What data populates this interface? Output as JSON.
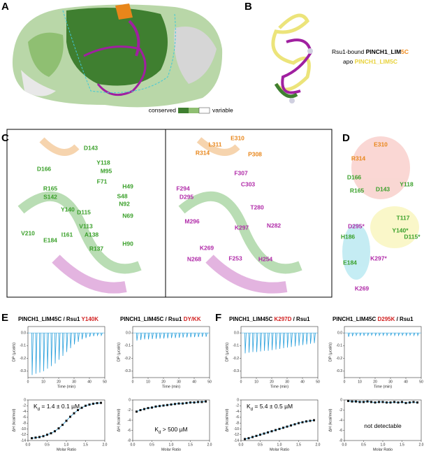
{
  "panel_labels": [
    "A",
    "B",
    "C",
    "D",
    "E",
    "F"
  ],
  "panel_a": {
    "legend_low": "conserved",
    "legend_high": "variable"
  },
  "panel_b": {
    "line1": [
      {
        "text": "Rsu1-bound ",
        "color": "#000000",
        "bold": false
      },
      {
        "text": "PINCH1_LIM",
        "color": "#000000",
        "bold": true
      },
      {
        "text": "5C",
        "color": "#f08c1e",
        "bold": true
      }
    ],
    "line2": [
      {
        "text": "apo ",
        "color": "#000000",
        "bold": false
      },
      {
        "text": "PINCH1_LIM5C",
        "color": "#e8d23c",
        "bold": true
      }
    ]
  },
  "residue_colors": {
    "green": "#3aa02a",
    "orange": "#e8861a",
    "magenta": "#b02aa8"
  },
  "panel_c": {
    "left": [
      {
        "text": "D143",
        "group": "green"
      },
      {
        "text": "Y118",
        "group": "green"
      },
      {
        "text": "D166",
        "group": "green"
      },
      {
        "text": "M95",
        "group": "green"
      },
      {
        "text": "F71",
        "group": "green"
      },
      {
        "text": "H49",
        "group": "green"
      },
      {
        "text": "R165",
        "group": "green"
      },
      {
        "text": "S48",
        "group": "green"
      },
      {
        "text": "S142",
        "group": "green"
      },
      {
        "text": "N92",
        "group": "green"
      },
      {
        "text": "D115",
        "group": "green"
      },
      {
        "text": "Y140",
        "group": "green"
      },
      {
        "text": "N69",
        "group": "green"
      },
      {
        "text": "V113",
        "group": "green"
      },
      {
        "text": "I161",
        "group": "green"
      },
      {
        "text": "A138",
        "group": "green"
      },
      {
        "text": "V210",
        "group": "green"
      },
      {
        "text": "E184",
        "group": "green"
      },
      {
        "text": "H90",
        "group": "green"
      },
      {
        "text": "R137",
        "group": "green"
      }
    ],
    "right": [
      {
        "text": "E310",
        "group": "orange"
      },
      {
        "text": "L311",
        "group": "orange"
      },
      {
        "text": "R314",
        "group": "orange"
      },
      {
        "text": "P308",
        "group": "orange"
      },
      {
        "text": "F307",
        "group": "magenta"
      },
      {
        "text": "C303",
        "group": "magenta"
      },
      {
        "text": "F294",
        "group": "magenta"
      },
      {
        "text": "D295",
        "group": "magenta"
      },
      {
        "text": "M296",
        "group": "magenta"
      },
      {
        "text": "T280",
        "group": "magenta"
      },
      {
        "text": "N282",
        "group": "magenta"
      },
      {
        "text": "K297",
        "group": "magenta"
      },
      {
        "text": "K269",
        "group": "magenta"
      },
      {
        "text": "N268",
        "group": "magenta"
      },
      {
        "text": "F253",
        "group": "magenta"
      },
      {
        "text": "H254",
        "group": "magenta"
      }
    ]
  },
  "panel_d": [
    {
      "text": "E310",
      "group": "orange"
    },
    {
      "text": "R314",
      "group": "orange"
    },
    {
      "text": "D166",
      "group": "green"
    },
    {
      "text": "Y118",
      "group": "green"
    },
    {
      "text": "D143",
      "group": "green"
    },
    {
      "text": "R165",
      "group": "green"
    },
    {
      "text": "T117",
      "group": "green"
    },
    {
      "text": "D295*",
      "group": "magenta"
    },
    {
      "text": "H186",
      "group": "green"
    },
    {
      "text": "D115*",
      "group": "green"
    },
    {
      "text": "Y140*",
      "group": "green"
    },
    {
      "text": "E184",
      "group": "green"
    },
    {
      "text": "K297*",
      "group": "magenta"
    },
    {
      "text": "K269",
      "group": "magenta"
    }
  ],
  "itc": [
    {
      "title": [
        {
          "text": "PINCH1_LIM45C / Rsu1 ",
          "color": "#000000"
        },
        {
          "text": "Y140K",
          "color": "#d11f1f"
        }
      ],
      "thermogram": {
        "ylabel": "DP (µcal/s)",
        "xlabel": "Time (min)",
        "xlim": [
          0,
          50
        ],
        "xticks": [
          0,
          10,
          20,
          30,
          40,
          50
        ],
        "ylim": [
          -0.35,
          0.05
        ],
        "yticks": [
          {
            "value": 0,
            "label": "0.0"
          },
          -0.1,
          -0.2,
          -0.3
        ],
        "color": "#2aa0dc",
        "times": [
          2.5,
          5,
          7.5,
          10,
          12.5,
          15,
          17.5,
          20,
          22.5,
          25,
          27.5,
          30,
          32.5,
          35,
          37.5,
          40,
          42.5,
          45,
          47.5
        ],
        "peaks": [
          -0.33,
          -0.32,
          -0.31,
          -0.3,
          -0.28,
          -0.26,
          -0.24,
          -0.21,
          -0.18,
          -0.15,
          -0.12,
          -0.09,
          -0.07,
          -0.05,
          -0.04,
          -0.03,
          -0.025,
          -0.02,
          -0.02
        ]
      },
      "isotherm": {
        "ylabel": "ΔH (kcal/mol)",
        "xlabel": "Molar Ratio",
        "xlim": [
          0,
          2
        ],
        "xticks": [
          {
            "value": 0,
            "label": "0.0"
          },
          {
            "value": 0.5,
            "label": "0.5"
          },
          {
            "value": 1,
            "label": "1.0"
          },
          {
            "value": 1.5,
            "label": "1.5"
          },
          {
            "value": 2,
            "label": "2.0"
          }
        ],
        "ylim": [
          -14,
          0
        ],
        "yticks": [
          0,
          -2,
          -4,
          -6,
          -8,
          -10,
          -12,
          -14
        ],
        "color": "#111111",
        "x": [
          0.1,
          0.2,
          0.3,
          0.4,
          0.5,
          0.6,
          0.7,
          0.8,
          0.9,
          1.0,
          1.1,
          1.2,
          1.3,
          1.4,
          1.5,
          1.6,
          1.7,
          1.8,
          1.9
        ],
        "values": [
          -13.2,
          -13.0,
          -12.8,
          -12.5,
          -12.0,
          -11.5,
          -10.8,
          -9.8,
          -8.6,
          -7.2,
          -5.8,
          -4.6,
          -3.5,
          -2.7,
          -2.0,
          -1.6,
          -1.3,
          -1.1,
          -1.0
        ],
        "annotation": [
          {
            "text": "K"
          },
          {
            "text": "d",
            "sub": true
          },
          {
            "text": " = 1.4 ± 0.1 µM"
          }
        ],
        "annotation_position": "top-left"
      }
    },
    {
      "title": [
        {
          "text": "PINCH1_LIM45C / Rsu1 ",
          "color": "#000000"
        },
        {
          "text": "DY/KK",
          "color": "#d11f1f"
        }
      ],
      "thermogram": {
        "ylabel": "DP (µcal/s)",
        "xlabel": "Time (min)",
        "xlim": [
          0,
          50
        ],
        "xticks": [
          0,
          10,
          20,
          30,
          40,
          50
        ],
        "ylim": [
          -0.35,
          0.05
        ],
        "yticks": [
          {
            "value": 0,
            "label": "0.0"
          },
          -0.1,
          -0.2,
          -0.3
        ],
        "color": "#2aa0dc",
        "times": [
          2.5,
          5,
          7.5,
          10,
          12.5,
          15,
          17.5,
          20,
          22.5,
          25,
          27.5,
          30,
          32.5,
          35,
          37.5,
          40,
          42.5,
          45,
          47.5
        ],
        "peaks": [
          -0.06,
          -0.055,
          -0.05,
          -0.05,
          -0.048,
          -0.046,
          -0.045,
          -0.044,
          -0.042,
          -0.04,
          -0.04,
          -0.038,
          -0.036,
          -0.035,
          -0.034,
          -0.033,
          -0.032,
          -0.03,
          -0.03
        ]
      },
      "isotherm": {
        "ylabel": "ΔH (kcal/mol)",
        "xlabel": "Molar Ratio",
        "xlim": [
          0,
          2
        ],
        "xticks": [
          {
            "value": 0,
            "label": "0.0"
          },
          {
            "value": 0.5,
            "label": "0.5"
          },
          {
            "value": 1,
            "label": "1.0"
          },
          {
            "value": 1.5,
            "label": "1.5"
          },
          {
            "value": 2,
            "label": "2.0"
          }
        ],
        "ylim": [
          -8,
          0
        ],
        "yticks": [
          0,
          -2,
          -4,
          -6,
          -8
        ],
        "color": "#111111",
        "x": [
          0.1,
          0.2,
          0.3,
          0.4,
          0.5,
          0.6,
          0.7,
          0.8,
          0.9,
          1.0,
          1.1,
          1.2,
          1.3,
          1.4,
          1.5,
          1.6,
          1.7,
          1.8,
          1.9
        ],
        "values": [
          -2.3,
          -2.0,
          -1.8,
          -1.6,
          -1.5,
          -1.3,
          -1.2,
          -1.1,
          -1.0,
          -0.9,
          -0.8,
          -0.7,
          -0.7,
          -0.6,
          -0.5,
          -0.5,
          -0.4,
          -0.4,
          -0.3
        ],
        "annotation": [
          {
            "text": "K"
          },
          {
            "text": "d",
            "sub": true
          },
          {
            "text": " > 500 µM"
          }
        ],
        "annotation_position": "bottom"
      }
    },
    {
      "title": [
        {
          "text": "PINCH1_LIM45C ",
          "color": "#000000"
        },
        {
          "text": "K297D",
          "color": "#d11f1f"
        },
        {
          "text": " / Rsu1",
          "color": "#000000"
        }
      ],
      "thermogram": {
        "ylabel": "DP (µcal/s)",
        "xlabel": "Time (min)",
        "xlim": [
          0,
          50
        ],
        "xticks": [
          0,
          10,
          20,
          30,
          40,
          50
        ],
        "ylim": [
          -0.35,
          0.05
        ],
        "yticks": [
          {
            "value": 0,
            "label": "0.0"
          },
          -0.1,
          -0.2,
          -0.3
        ],
        "color": "#2aa0dc",
        "times": [
          2.5,
          5,
          7.5,
          10,
          12.5,
          15,
          17.5,
          20,
          22.5,
          25,
          27.5,
          30,
          32.5,
          35,
          37.5,
          40,
          42.5,
          45,
          47.5
        ],
        "peaks": [
          -0.16,
          -0.155,
          -0.15,
          -0.15,
          -0.145,
          -0.14,
          -0.14,
          -0.135,
          -0.13,
          -0.125,
          -0.12,
          -0.115,
          -0.11,
          -0.105,
          -0.1,
          -0.095,
          -0.09,
          -0.085,
          -0.08
        ]
      },
      "isotherm": {
        "ylabel": "ΔH (kcal/mol)",
        "xlabel": "Molar Ratio",
        "xlim": [
          0,
          2
        ],
        "xticks": [
          {
            "value": 0,
            "label": "0.0"
          },
          {
            "value": 0.5,
            "label": "0.5"
          },
          {
            "value": 1,
            "label": "1.0"
          },
          {
            "value": 1.5,
            "label": "1.5"
          },
          {
            "value": 2,
            "label": "2.0"
          }
        ],
        "ylim": [
          -14,
          0
        ],
        "yticks": [
          0,
          -2,
          -4,
          -6,
          -8,
          -10,
          -12,
          -14
        ],
        "color": "#111111",
        "x": [
          0.1,
          0.2,
          0.3,
          0.4,
          0.5,
          0.6,
          0.7,
          0.8,
          0.9,
          1.0,
          1.1,
          1.2,
          1.3,
          1.4,
          1.5,
          1.6,
          1.7,
          1.8,
          1.9
        ],
        "values": [
          -13.5,
          -13.2,
          -12.8,
          -12.4,
          -12.0,
          -11.6,
          -11.2,
          -10.8,
          -10.4,
          -10.0,
          -9.6,
          -9.2,
          -8.8,
          -8.4,
          -8.0,
          -7.7,
          -7.4,
          -7.2,
          -7.0
        ],
        "annotation": [
          {
            "text": "K"
          },
          {
            "text": "d",
            "sub": true
          },
          {
            "text": " = 5.4 ± 0.5 µM"
          }
        ],
        "annotation_position": "top-left"
      }
    },
    {
      "title": [
        {
          "text": "PINCH1_LIM45C ",
          "color": "#000000"
        },
        {
          "text": "D295K",
          "color": "#d11f1f"
        },
        {
          "text": " / Rsu1",
          "color": "#000000"
        }
      ],
      "thermogram": {
        "ylabel": "DP (µcal/s)",
        "xlabel": "Time (min)",
        "xlim": [
          0,
          50
        ],
        "xticks": [
          0,
          10,
          20,
          30,
          40,
          50
        ],
        "ylim": [
          -0.35,
          0.05
        ],
        "yticks": [
          {
            "value": 0,
            "label": "0.0"
          },
          -0.1,
          -0.2,
          -0.3
        ],
        "color": "#2aa0dc",
        "times": [
          2.5,
          5,
          7.5,
          10,
          12.5,
          15,
          17.5,
          20,
          22.5,
          25,
          27.5,
          30,
          32.5,
          35,
          37.5,
          40,
          42.5,
          45,
          47.5
        ],
        "peaks": [
          -0.03,
          -0.025,
          -0.02,
          -0.02,
          -0.022,
          -0.02,
          -0.018,
          -0.02,
          -0.02,
          -0.019,
          -0.02,
          -0.018,
          -0.02,
          -0.02,
          -0.019,
          -0.02,
          -0.018,
          -0.02,
          -0.02
        ]
      },
      "isotherm": {
        "ylabel": "ΔH (kcal/mol)",
        "xlabel": "Molar Ratio",
        "xlim": [
          0,
          2
        ],
        "xticks": [
          {
            "value": 0,
            "label": "0.0"
          },
          {
            "value": 0.5,
            "label": "0.5"
          },
          {
            "value": 1,
            "label": "1.0"
          },
          {
            "value": 1.5,
            "label": "1.5"
          },
          {
            "value": 2,
            "label": "2.0"
          }
        ],
        "ylim": [
          -8,
          0
        ],
        "yticks": [
          0,
          -2,
          -4,
          -6,
          -8
        ],
        "color": "#111111",
        "x": [
          0.1,
          0.2,
          0.3,
          0.4,
          0.5,
          0.6,
          0.7,
          0.8,
          0.9,
          1.0,
          1.1,
          1.2,
          1.3,
          1.4,
          1.5,
          1.6,
          1.7,
          1.8,
          1.9
        ],
        "values": [
          -0.2,
          -0.3,
          -0.3,
          -0.4,
          -0.4,
          -0.3,
          -0.4,
          -0.5,
          -0.4,
          -0.4,
          -0.5,
          -0.5,
          -0.4,
          -0.5,
          -0.4,
          -0.6,
          -0.5,
          -0.4,
          -0.5
        ],
        "annotation": [
          {
            "text": "not detectable"
          }
        ],
        "annotation_position": "middle"
      }
    }
  ]
}
